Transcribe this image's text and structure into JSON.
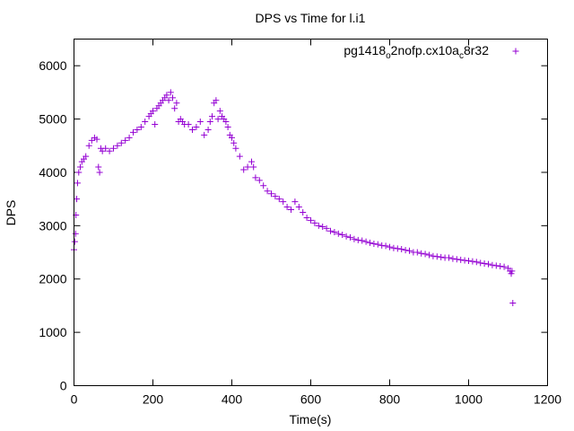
{
  "chart_data": {
    "type": "scatter",
    "title": "DPS vs Time for l.i1",
    "xlabel": "Time(s)",
    "ylabel": "DPS",
    "xlim": [
      0,
      1200
    ],
    "ylim": [
      0,
      6500
    ],
    "x_ticks": [
      0,
      200,
      400,
      600,
      800,
      1000,
      1200
    ],
    "y_ticks": [
      0,
      1000,
      2000,
      3000,
      4000,
      5000,
      6000
    ],
    "grid": false,
    "legend_position": "top-right",
    "marker": "plus",
    "series": [
      {
        "name_parts": [
          "pg1418",
          "o",
          "2nofp.cx10a",
          "c",
          "8r32"
        ],
        "color": "#9400d3",
        "x": [
          0,
          2,
          4,
          5,
          7,
          9,
          12,
          16,
          20,
          25,
          30,
          38,
          45,
          52,
          58,
          62,
          65,
          68,
          72,
          80,
          90,
          100,
          110,
          120,
          130,
          140,
          150,
          160,
          170,
          180,
          190,
          195,
          200,
          205,
          210,
          215,
          220,
          225,
          230,
          235,
          240,
          245,
          250,
          255,
          260,
          265,
          270,
          275,
          280,
          290,
          300,
          310,
          320,
          330,
          340,
          345,
          350,
          355,
          360,
          365,
          370,
          375,
          380,
          385,
          390,
          395,
          400,
          405,
          410,
          420,
          430,
          440,
          450,
          455,
          460,
          470,
          480,
          490,
          500,
          510,
          520,
          530,
          540,
          550,
          560,
          570,
          580,
          590,
          600,
          610,
          620,
          630,
          640,
          650,
          660,
          670,
          680,
          690,
          700,
          710,
          720,
          730,
          740,
          750,
          760,
          770,
          780,
          790,
          800,
          810,
          820,
          830,
          840,
          850,
          860,
          870,
          880,
          890,
          900,
          910,
          920,
          930,
          940,
          950,
          960,
          970,
          980,
          990,
          1000,
          1010,
          1020,
          1030,
          1040,
          1050,
          1060,
          1070,
          1080,
          1090,
          1100,
          1105,
          1108,
          1110,
          1112
        ],
        "y": [
          2550,
          2700,
          2850,
          3200,
          3500,
          3800,
          4000,
          4100,
          4200,
          4250,
          4300,
          4500,
          4600,
          4650,
          4620,
          4100,
          4000,
          4450,
          4400,
          4450,
          4400,
          4450,
          4500,
          4550,
          4600,
          4650,
          4750,
          4800,
          4850,
          4950,
          5050,
          5100,
          5150,
          4900,
          5200,
          5250,
          5300,
          5350,
          5400,
          5450,
          5350,
          5500,
          5400,
          5200,
          5300,
          4950,
          5000,
          4950,
          4900,
          4900,
          4800,
          4850,
          4950,
          4700,
          4800,
          4950,
          5050,
          5300,
          5350,
          5000,
          5150,
          5050,
          5000,
          4950,
          4850,
          4700,
          4650,
          4550,
          4450,
          4300,
          4050,
          4100,
          4200,
          4100,
          3900,
          3850,
          3750,
          3650,
          3600,
          3550,
          3500,
          3450,
          3350,
          3300,
          3450,
          3350,
          3250,
          3150,
          3100,
          3050,
          3000,
          2980,
          2950,
          2900,
          2880,
          2850,
          2830,
          2800,
          2780,
          2750,
          2730,
          2720,
          2700,
          2680,
          2660,
          2650,
          2630,
          2620,
          2600,
          2580,
          2570,
          2560,
          2540,
          2530,
          2500,
          2500,
          2480,
          2470,
          2450,
          2430,
          2420,
          2410,
          2400,
          2400,
          2380,
          2370,
          2360,
          2350,
          2340,
          2330,
          2320,
          2300,
          2290,
          2280,
          2260,
          2250,
          2240,
          2230,
          2200,
          2150,
          2100,
          2150,
          1550
        ]
      }
    ]
  }
}
